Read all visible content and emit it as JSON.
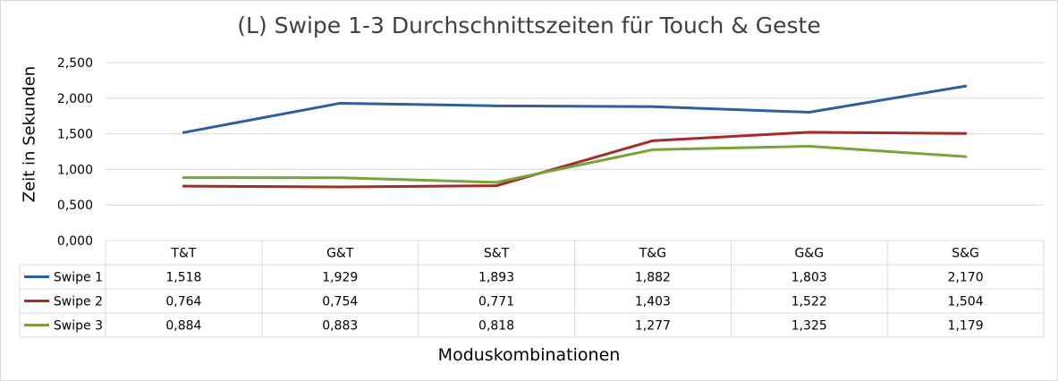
{
  "chart_data": {
    "type": "line",
    "title": "(L) Swipe 1-3 Durchschnittszeiten für Touch & Geste",
    "xlabel": "Moduskombinationen",
    "ylabel": "Zeit in Sekunden",
    "categories": [
      "T&T",
      "G&T",
      "S&T",
      "T&G",
      "G&G",
      "S&G"
    ],
    "ylim": [
      0,
      2.5
    ],
    "yticks": [
      "0,000",
      "0,500",
      "1,000",
      "1,500",
      "2,000",
      "2,500"
    ],
    "grid": true,
    "legend_placement": "data-table",
    "series": [
      {
        "name": "Swipe 1",
        "color": "#2e5e9f",
        "values": [
          1.518,
          1.929,
          1.893,
          1.882,
          1.803,
          2.17
        ],
        "labels": [
          "1,518",
          "1,929",
          "1,893",
          "1,882",
          "1,803",
          "2,170"
        ]
      },
      {
        "name": "Swipe 2",
        "color": "#a52a2a",
        "values": [
          0.764,
          0.754,
          0.771,
          1.403,
          1.522,
          1.504
        ],
        "labels": [
          "0,764",
          "0,754",
          "0,771",
          "1,403",
          "1,522",
          "1,504"
        ]
      },
      {
        "name": "Swipe 3",
        "color": "#77a33a",
        "values": [
          0.884,
          0.883,
          0.818,
          1.277,
          1.325,
          1.179
        ],
        "labels": [
          "0,884",
          "0,883",
          "0,818",
          "1,277",
          "1,325",
          "1,179"
        ]
      }
    ]
  }
}
